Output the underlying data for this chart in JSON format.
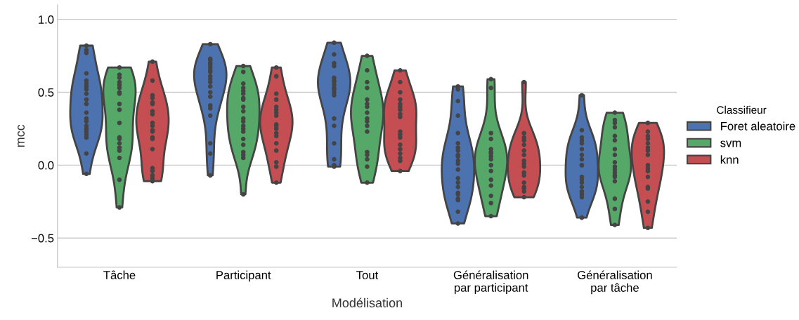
{
  "chart_data": {
    "type": "scatter",
    "xlabel": "Modélisation",
    "ylabel": "mcc",
    "legend_title": "Classifieur",
    "legend": "right",
    "grid": "y",
    "categories": [
      "Tâche",
      "Participant",
      "Tout",
      "Généralisation\npar participant",
      "Généralisation\npar tâche"
    ],
    "ylim": [
      -0.7,
      1.1
    ],
    "yticks": [
      {
        "value": -0.5,
        "label": "−0.5"
      },
      {
        "value": 0.0,
        "label": "0.0"
      },
      {
        "value": 0.5,
        "label": "0.5"
      },
      {
        "value": 1.0,
        "label": "1.0"
      }
    ],
    "series": [
      {
        "name": "Foret aleatoire",
        "color": "#4c72b0",
        "colors": [
          "#444444",
          "#444444",
          "#444444",
          "#444444",
          "#444444",
          "#444444",
          "#444444",
          "#444444",
          "#444444",
          "#444444",
          "#444444",
          "#444444",
          "#444444",
          "#444444",
          "#444444",
          "#444444",
          "#444444",
          "#444444",
          "#444444",
          "#444444",
          "#444444",
          "#444444",
          "#444444",
          "#444444",
          "#444444",
          "#444444",
          "#444444",
          "#444444",
          "#444444",
          "#444444",
          "#444444",
          "#444444",
          "#444444",
          "#444444",
          "#444444",
          "#444444",
          "#444444",
          "#444444",
          "#444444",
          "#444444",
          "#444444",
          "#444444",
          "#444444",
          "#444444",
          "#444444",
          "#444444",
          "#444444",
          "#444444",
          "#444444",
          "#444444",
          "#444444",
          "#444444",
          "#444444",
          "#444444",
          "#444444",
          "#444444",
          "#444444",
          "#444444",
          "#444444",
          "#444444",
          "#444444",
          "#444444",
          "#444444",
          "#444444",
          "#444444",
          "#444444",
          "#444444",
          "#444444",
          "#444444",
          "#444444",
          "#444444",
          "#444444",
          "#444444",
          "#444444",
          "#444444",
          "#444444",
          "#444444",
          "#444444",
          "#444444",
          "#444444",
          "#444444",
          "#444444",
          "#444444",
          "#444444",
          "#444444",
          "#444444",
          "#444444",
          "#444444",
          "#444444",
          "#444444",
          "#444444",
          "#444444",
          "#444444",
          "#444444",
          "#444444",
          "#444444",
          "#444444",
          "#444444",
          "#444444"
        ],
        "x": [
          "Tâche",
          "Tâche",
          "Tâche",
          "Tâche",
          "Tâche",
          "Tâche",
          "Tâche",
          "Tâche",
          "Tâche",
          "Tâche",
          "Tâche",
          "Tâche",
          "Tâche",
          "Tâche",
          "Tâche",
          "Tâche",
          "Tâche",
          "Tâche",
          "Tâche",
          "Tâche",
          "Tâche",
          "Participant",
          "Participant",
          "Participant",
          "Participant",
          "Participant",
          "Participant",
          "Participant",
          "Participant",
          "Participant",
          "Participant",
          "Participant",
          "Participant",
          "Participant",
          "Participant",
          "Participant",
          "Participant",
          "Participant",
          "Participant",
          "Participant",
          "Participant",
          "Tout",
          "Tout",
          "Tout",
          "Tout",
          "Tout",
          "Tout",
          "Tout",
          "Tout",
          "Tout",
          "Tout",
          "Tout",
          "Tout",
          "Tout",
          "Tout",
          "Tout",
          "Tout",
          "Tout",
          "Tout",
          "Généralisation\npar participant",
          "Généralisation\npar participant",
          "Généralisation\npar participant",
          "Généralisation\npar participant",
          "Généralisation\npar participant",
          "Généralisation\npar participant",
          "Généralisation\npar participant",
          "Généralisation\npar participant",
          "Généralisation\npar participant",
          "Généralisation\npar participant",
          "Généralisation\npar participant",
          "Généralisation\npar participant",
          "Généralisation\npar participant",
          "Généralisation\npar participant",
          "Généralisation\npar participant",
          "Généralisation\npar participant",
          "Généralisation\npar participant",
          "Généralisation\npar participant",
          "Généralisation\npar participant",
          "Généralisation\npar participant",
          "Généralisation\npar participant",
          "Généralisation\npar participant",
          "Généralisation\npar tâche",
          "Généralisation\npar tâche",
          "Généralisation\npar tâche",
          "Généralisation\npar tâche",
          "Généralisation\npar tâche",
          "Généralisation\npar tâche",
          "Généralisation\npar tâche",
          "Généralisation\npar tâche",
          "Généralisation\npar tâche",
          "Généralisation\npar tâche",
          "Généralisation\npar tâche",
          "Généralisation\npar tâche",
          "Généralisation\npar tâche",
          "Généralisation\npar tâche",
          "Généralisation\npar tâche",
          "Généralisation\npar tâche",
          "Généralisation\npar tâche",
          "Généralisation\npar tâche"
        ],
        "values": [
          0.82,
          0.79,
          0.77,
          0.63,
          0.58,
          0.56,
          0.54,
          0.52,
          0.49,
          0.45,
          0.42,
          0.36,
          0.32,
          0.3,
          0.27,
          0.25,
          0.23,
          0.21,
          0.19,
          0.08,
          -0.06,
          0.83,
          0.73,
          0.72,
          0.7,
          0.69,
          0.67,
          0.65,
          0.64,
          0.61,
          0.59,
          0.57,
          0.54,
          0.5,
          0.47,
          0.41,
          0.39,
          0.34,
          0.15,
          0.08,
          -0.07,
          0.84,
          0.76,
          0.7,
          0.68,
          0.6,
          0.58,
          0.57,
          0.55,
          0.53,
          0.52,
          0.5,
          0.48,
          0.32,
          0.27,
          0.15,
          0.04,
          0.0,
          -0.01,
          0.54,
          0.52,
          0.44,
          0.34,
          0.22,
          0.15,
          0.12,
          0.1,
          0.07,
          0.06,
          0.03,
          0.01,
          -0.03,
          -0.09,
          -0.12,
          -0.15,
          -0.19,
          -0.2,
          -0.23,
          -0.24,
          -0.32,
          -0.4,
          0.48,
          0.24,
          0.19,
          0.17,
          0.15,
          0.11,
          0.07,
          0.04,
          0.0,
          0.0,
          -0.08,
          -0.1,
          -0.12,
          -0.15,
          -0.18,
          -0.2,
          -0.22,
          -0.36
        ]
      },
      {
        "name": "svm",
        "color": "#55a868",
        "colors": [
          "#444444",
          "#444444",
          "#444444",
          "#444444",
          "#444444",
          "#444444",
          "#444444",
          "#444444",
          "#444444",
          "#444444",
          "#444444",
          "#444444",
          "#444444",
          "#444444",
          "#444444",
          "#444444",
          "#444444",
          "#444444",
          "#444444",
          "#444444",
          "#444444",
          "#444444",
          "#444444",
          "#444444",
          "#444444",
          "#444444",
          "#444444",
          "#444444",
          "#444444",
          "#444444",
          "#444444",
          "#444444",
          "#444444",
          "#444444",
          "#444444",
          "#444444",
          "#444444",
          "#444444",
          "#444444",
          "#444444",
          "#444444",
          "#444444",
          "#444444",
          "#444444",
          "#444444",
          "#444444",
          "#444444",
          "#444444",
          "#444444",
          "#444444",
          "#444444",
          "#444444",
          "#444444",
          "#444444",
          "#444444",
          "#444444",
          "#444444",
          "#444444",
          "#444444",
          "#444444",
          "#444444",
          "#444444",
          "#444444",
          "#444444",
          "#444444",
          "#444444",
          "#444444",
          "#444444",
          "#444444",
          "#444444",
          "#444444",
          "#444444",
          "#444444",
          "#444444",
          "#444444",
          "#444444",
          "#444444",
          "#444444",
          "#444444",
          "#444444",
          "#444444",
          "#444444",
          "#444444",
          "#444444",
          "#444444",
          "#444444",
          "#444444",
          "#444444",
          "#444444",
          "#444444",
          "#444444"
        ],
        "x": [
          "Tâche",
          "Tâche",
          "Tâche",
          "Tâche",
          "Tâche",
          "Tâche",
          "Tâche",
          "Tâche",
          "Tâche",
          "Tâche",
          "Tâche",
          "Tâche",
          "Tâche",
          "Tâche",
          "Tâche",
          "Tâche",
          "Tâche",
          "Tâche",
          "Tâche",
          "Participant",
          "Participant",
          "Participant",
          "Participant",
          "Participant",
          "Participant",
          "Participant",
          "Participant",
          "Participant",
          "Participant",
          "Participant",
          "Participant",
          "Participant",
          "Participant",
          "Participant",
          "Participant",
          "Participant",
          "Participant",
          "Participant",
          "Participant",
          "Participant",
          "Tout",
          "Tout",
          "Tout",
          "Tout",
          "Tout",
          "Tout",
          "Tout",
          "Tout",
          "Tout",
          "Tout",
          "Tout",
          "Tout",
          "Tout",
          "Tout",
          "Tout",
          "Tout",
          "Tout",
          "Généralisation\npar participant",
          "Généralisation\npar participant",
          "Généralisation\npar participant",
          "Généralisation\npar participant",
          "Généralisation\npar participant",
          "Généralisation\npar participant",
          "Généralisation\npar participant",
          "Généralisation\npar participant",
          "Généralisation\npar participant",
          "Généralisation\npar participant",
          "Généralisation\npar participant",
          "Généralisation\npar participant",
          "Généralisation\npar participant",
          "Généralisation\npar participant",
          "Généralisation\npar participant",
          "Généralisation\npar participant",
          "Généralisation\npar tâche",
          "Généralisation\npar tâche",
          "Généralisation\npar tâche",
          "Généralisation\npar tâche",
          "Généralisation\npar tâche",
          "Généralisation\npar tâche",
          "Généralisation\npar tâche",
          "Généralisation\npar tâche",
          "Généralisation\npar tâche",
          "Généralisation\npar tâche",
          "Généralisation\npar tâche",
          "Généralisation\npar tâche",
          "Généralisation\npar tâche",
          "Généralisation\npar tâche",
          "Généralisation\npar tâche",
          "Généralisation\npar tâche",
          "Généralisation\npar tâche",
          "Généralisation\npar tâche"
        ],
        "values": [
          0.67,
          0.62,
          0.6,
          0.57,
          0.55,
          0.53,
          0.5,
          0.49,
          0.42,
          0.38,
          0.29,
          0.19,
          0.18,
          0.15,
          0.12,
          0.1,
          0.05,
          -0.1,
          -0.29,
          0.68,
          0.64,
          0.56,
          0.53,
          0.51,
          0.49,
          0.46,
          0.45,
          0.4,
          0.37,
          0.32,
          0.3,
          0.27,
          0.25,
          0.23,
          0.18,
          0.14,
          0.09,
          0.07,
          0.05,
          -0.2,
          0.75,
          0.65,
          0.57,
          0.53,
          0.45,
          0.42,
          0.4,
          0.36,
          0.32,
          0.3,
          0.27,
          0.23,
          0.09,
          0.07,
          0.04,
          -0.01,
          -0.12,
          0.59,
          0.53,
          0.22,
          0.18,
          0.11,
          0.09,
          0.08,
          0.06,
          0.04,
          0.0,
          -0.04,
          -0.1,
          -0.14,
          -0.21,
          -0.26,
          -0.35,
          0.36,
          0.31,
          0.29,
          0.26,
          0.2,
          0.17,
          0.11,
          0.07,
          0.02,
          -0.01,
          -0.03,
          -0.05,
          -0.07,
          -0.08,
          -0.11,
          -0.23,
          -0.3,
          -0.41
        ]
      },
      {
        "name": "knn",
        "color": "#c44e52",
        "colors": [
          "#444444",
          "#444444",
          "#444444",
          "#444444",
          "#444444",
          "#444444",
          "#444444",
          "#444444",
          "#444444",
          "#444444",
          "#444444",
          "#444444",
          "#444444",
          "#444444",
          "#444444",
          "#444444",
          "#444444",
          "#444444",
          "#444444",
          "#444444",
          "#444444",
          "#444444",
          "#444444",
          "#444444",
          "#444444",
          "#444444",
          "#444444",
          "#444444",
          "#444444",
          "#444444",
          "#444444",
          "#444444",
          "#444444",
          "#444444",
          "#444444",
          "#444444",
          "#444444",
          "#444444",
          "#444444",
          "#444444",
          "#444444",
          "#444444",
          "#444444",
          "#444444",
          "#444444",
          "#444444",
          "#444444",
          "#444444",
          "#444444",
          "#444444",
          "#444444",
          "#444444",
          "#444444",
          "#444444",
          "#444444",
          "#444444",
          "#444444",
          "#444444",
          "#444444",
          "#444444",
          "#444444",
          "#444444",
          "#444444",
          "#444444",
          "#444444",
          "#444444",
          "#444444",
          "#444444",
          "#444444",
          "#444444",
          "#444444",
          "#444444",
          "#444444",
          "#444444",
          "#444444",
          "#444444",
          "#444444",
          "#444444",
          "#444444",
          "#444444",
          "#444444",
          "#444444",
          "#444444",
          "#444444",
          "#444444",
          "#444444",
          "#444444",
          "#444444",
          "#444444",
          "#444444"
        ],
        "x": [
          "Tâche",
          "Tâche",
          "Tâche",
          "Tâche",
          "Tâche",
          "Tâche",
          "Tâche",
          "Tâche",
          "Tâche",
          "Tâche",
          "Tâche",
          "Tâche",
          "Tâche",
          "Tâche",
          "Tâche",
          "Tâche",
          "Tâche",
          "Tâche",
          "Tâche",
          "Tâche",
          "Participant",
          "Participant",
          "Participant",
          "Participant",
          "Participant",
          "Participant",
          "Participant",
          "Participant",
          "Participant",
          "Participant",
          "Participant",
          "Participant",
          "Participant",
          "Participant",
          "Participant",
          "Participant",
          "Participant",
          "Participant",
          "Tout",
          "Tout",
          "Tout",
          "Tout",
          "Tout",
          "Tout",
          "Tout",
          "Tout",
          "Tout",
          "Tout",
          "Tout",
          "Tout",
          "Tout",
          "Tout",
          "Tout",
          "Tout",
          "Tout",
          "Tout",
          "Généralisation\npar participant",
          "Généralisation\npar participant",
          "Généralisation\npar participant",
          "Généralisation\npar participant",
          "Généralisation\npar participant",
          "Généralisation\npar participant",
          "Généralisation\npar participant",
          "Généralisation\npar participant",
          "Généralisation\npar participant",
          "Généralisation\npar participant",
          "Généralisation\npar participant",
          "Généralisation\npar participant",
          "Généralisation\npar participant",
          "Généralisation\npar participant",
          "Généralisation\npar participant",
          "Généralisation\npar participant",
          "Généralisation\npar participant",
          "Généralisation\npar tâche",
          "Généralisation\npar tâche",
          "Généralisation\npar tâche",
          "Généralisation\npar tâche",
          "Généralisation\npar tâche",
          "Généralisation\npar tâche",
          "Généralisation\npar tâche",
          "Généralisation\npar tâche",
          "Généralisation\npar tâche",
          "Généralisation\npar tâche",
          "Généralisation\npar tâche",
          "Généralisation\npar tâche",
          "Généralisation\npar tâche",
          "Généralisation\npar tâche",
          "Généralisation\npar tâche",
          "Généralisation\npar tâche",
          "Généralisation\npar tâche"
        ],
        "values": [
          0.71,
          0.58,
          0.48,
          0.46,
          0.43,
          0.42,
          0.37,
          0.35,
          0.29,
          0.27,
          0.24,
          0.23,
          0.19,
          0.18,
          0.11,
          -0.02,
          -0.04,
          -0.07,
          -0.09,
          -0.11,
          0.67,
          0.61,
          0.49,
          0.45,
          0.4,
          0.38,
          0.36,
          0.34,
          0.28,
          0.27,
          0.25,
          0.22,
          0.2,
          0.15,
          0.1,
          0.02,
          -0.01,
          -0.12,
          0.65,
          0.57,
          0.5,
          0.45,
          0.42,
          0.4,
          0.38,
          0.35,
          0.33,
          0.23,
          0.21,
          0.19,
          0.14,
          0.11,
          0.08,
          0.05,
          0.03,
          -0.04,
          0.57,
          0.22,
          0.19,
          0.17,
          0.14,
          0.1,
          0.07,
          0.03,
          0.01,
          -0.01,
          -0.05,
          -0.07,
          -0.12,
          -0.15,
          -0.16,
          -0.18,
          -0.22,
          0.29,
          0.23,
          0.2,
          0.18,
          0.15,
          0.12,
          0.1,
          0.07,
          0.0,
          -0.02,
          -0.04,
          -0.08,
          -0.15,
          -0.16,
          -0.25,
          -0.32,
          -0.43
        ]
      }
    ]
  }
}
